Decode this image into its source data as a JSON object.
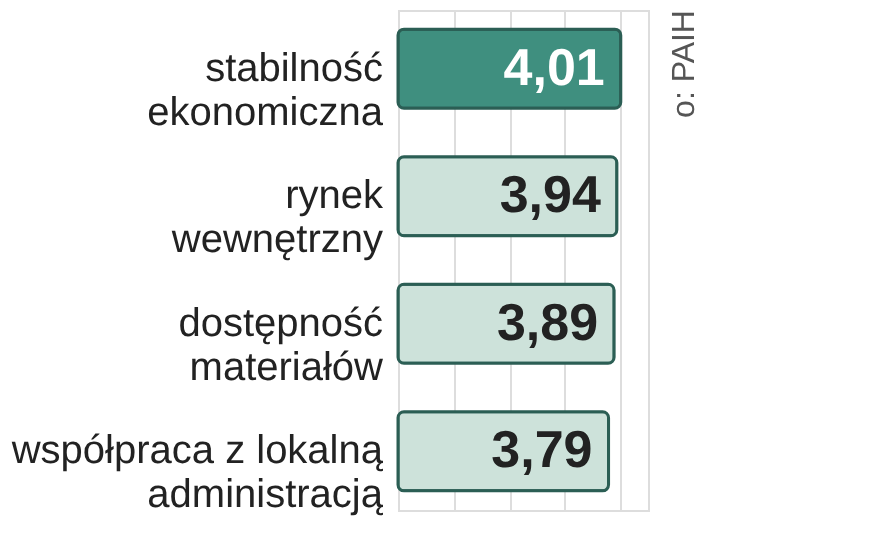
{
  "chart_data": {
    "type": "bar",
    "orientation": "horizontal",
    "relative": false,
    "categories": [
      "stabilność\nekonomiczna",
      "rynek\nwewnętrzny",
      "dostępność\nmateriałów",
      "współpraca z lokalną\nadministracją"
    ],
    "values": [
      4.01,
      3.94,
      3.89,
      3.79
    ],
    "colors": [
      "#3f8f7f",
      "#cde2da",
      "#cde2da",
      "#cde2da"
    ],
    "value_labels": [
      "4,01",
      "3,94",
      "3,89",
      "3,79"
    ],
    "grid": "x",
    "annotations": [
      "o: PAIH"
    ]
  }
}
